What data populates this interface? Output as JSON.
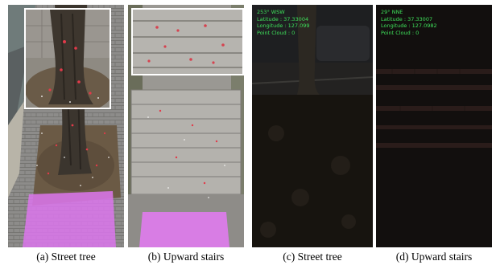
{
  "figure": {
    "panels": [
      {
        "caption": "(a) Street tree"
      },
      {
        "caption": "(b) Upward stairs"
      },
      {
        "caption": "(c) Street tree",
        "overlay": {
          "heading": "253° WSW",
          "latitude": "Latitude : 37.33004",
          "longitude": "Longitude : 127.099",
          "point_cloud": "Point Cloud : 0"
        }
      },
      {
        "caption": "(d) Upward stairs",
        "overlay": {
          "heading": "29° NNE",
          "latitude": "Latitude : 37.33007",
          "longitude": "Longitude : 127.0982",
          "point_cloud": "Point Cloud : 0"
        }
      }
    ],
    "colors": {
      "overlay_text": "#3ee05a",
      "walkable_highlight": "#e27bf0",
      "feature_point": "#e23a4a"
    }
  }
}
